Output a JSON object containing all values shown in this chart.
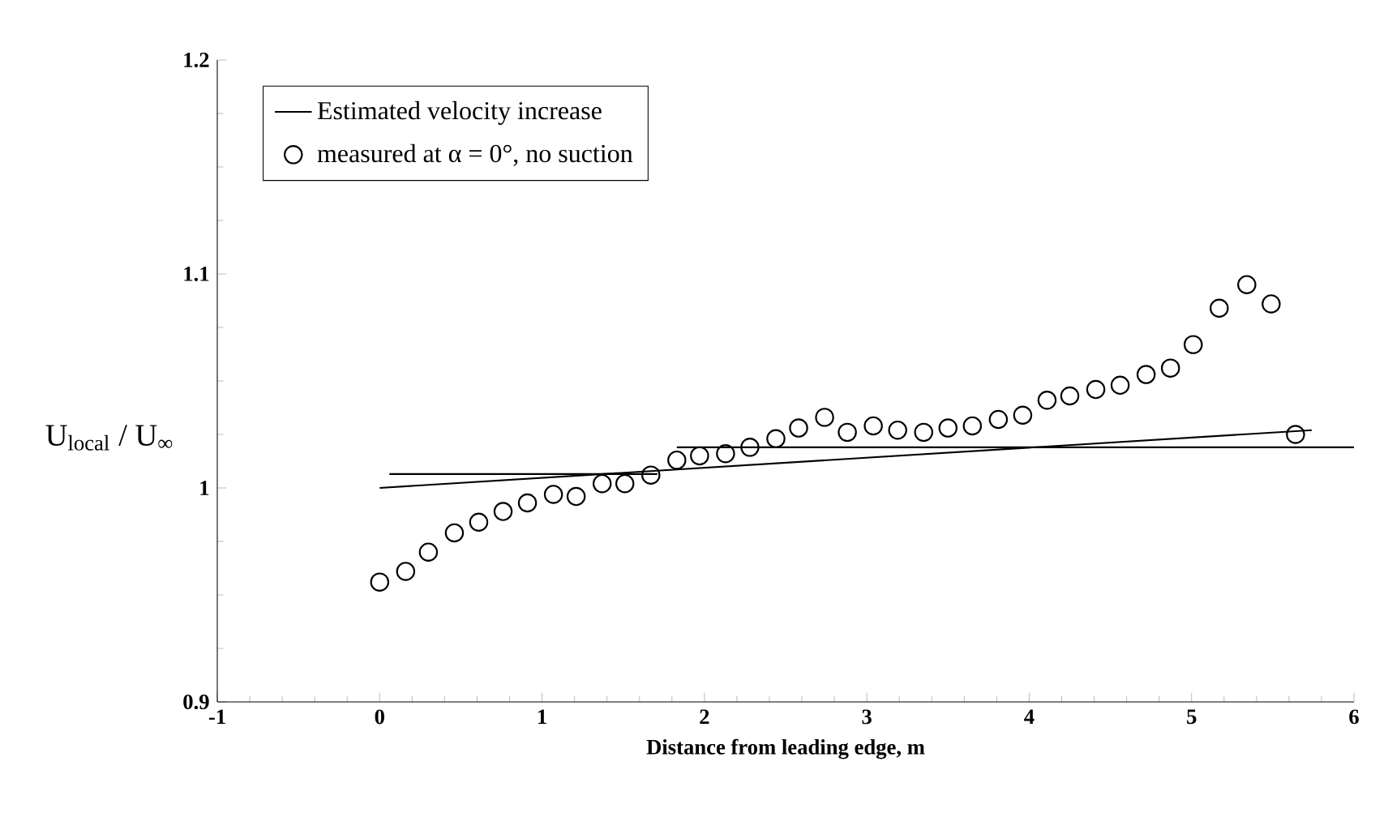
{
  "chart_data": {
    "type": "scatter",
    "xlabel": "Distance from leading edge, m",
    "ylabel": "U$_{local}$ / U$_{∞}$",
    "xlim": [
      -1,
      6
    ],
    "ylim": [
      0.9,
      1.2
    ],
    "xticks": [
      -1,
      0,
      1,
      2,
      3,
      4,
      5,
      6
    ],
    "yticks": [
      0.9,
      1,
      1.1,
      1.2
    ],
    "legend": "top left",
    "grid": false,
    "series": [
      {
        "name": "Estimated velocity increase",
        "type": "line",
        "color": "#000000",
        "marker": "none",
        "x": [
          0,
          5.74
        ],
        "values": [
          1.0,
          1.027
        ]
      },
      {
        "type": "line",
        "color": "#000000",
        "marker": "none",
        "x": [
          0.06,
          1.71
        ],
        "values": [
          1.0065,
          1.0065
        ]
      },
      {
        "type": "line",
        "color": "#000000",
        "marker": "none",
        "x": [
          1.83,
          6
        ],
        "values": [
          1.019,
          1.019
        ]
      },
      {
        "name": "measured at α = 0°, no suction",
        "type": "scatter",
        "color": "#000000",
        "marker": "circle",
        "x": [
          0,
          0.16,
          0.3,
          0.46,
          0.61,
          0.76,
          0.91,
          1.07,
          1.21,
          1.37,
          1.51,
          1.67,
          1.83,
          1.97,
          2.13,
          2.28,
          2.44,
          2.58,
          2.74,
          2.88,
          3.04,
          3.19,
          3.35,
          3.5,
          3.65,
          3.81,
          3.96,
          4.11,
          4.25,
          4.41,
          4.56,
          4.72,
          4.87,
          5.01,
          5.17,
          5.34,
          5.49,
          5.64
        ],
        "values": [
          0.956,
          0.961,
          0.97,
          0.979,
          0.984,
          0.989,
          0.993,
          0.997,
          0.996,
          1.002,
          1.002,
          1.006,
          1.013,
          1.015,
          1.016,
          1.019,
          1.023,
          1.028,
          1.033,
          1.026,
          1.029,
          1.027,
          1.026,
          1.028,
          1.029,
          1.032,
          1.034,
          1.041,
          1.043,
          1.046,
          1.048,
          1.053,
          1.056,
          1.067,
          1.084,
          1.095,
          1.086,
          1.025
        ]
      }
    ]
  }
}
